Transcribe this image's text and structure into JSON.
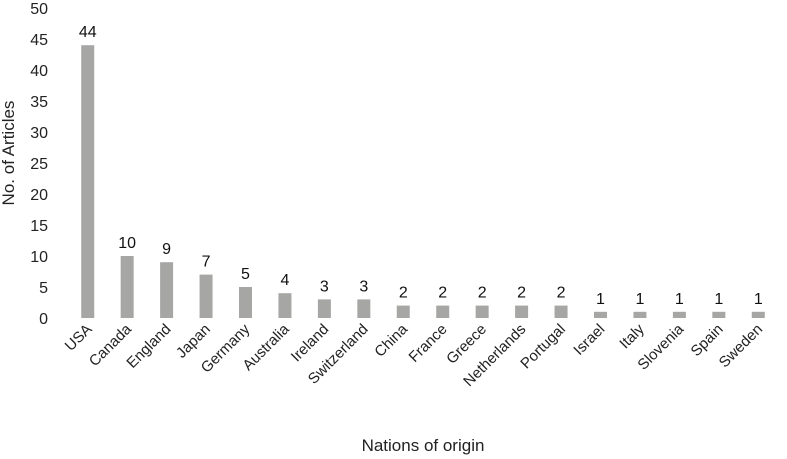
{
  "chart_data": {
    "type": "bar",
    "categories": [
      "USA",
      "Canada",
      "England",
      "Japan",
      "Germany",
      "Australia",
      "Ireland",
      "Switzerland",
      "China",
      "France",
      "Greece",
      "Netherlands",
      "Portugal",
      "Israel",
      "Italy",
      "Slovenia",
      "Spain",
      "Sweden"
    ],
    "values": [
      44,
      10,
      9,
      7,
      5,
      4,
      3,
      3,
      2,
      2,
      2,
      2,
      2,
      1,
      1,
      1,
      1,
      1
    ],
    "xlabel": "Nations of origin",
    "ylabel": "No. of Articles",
    "ylim": [
      0,
      50
    ],
    "yticks": [
      0,
      5,
      10,
      15,
      20,
      25,
      30,
      35,
      40,
      45,
      50
    ],
    "grid": false,
    "legend": "none",
    "bar_color": "#a6a6a4"
  }
}
